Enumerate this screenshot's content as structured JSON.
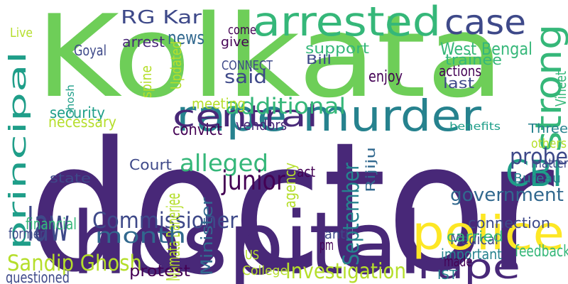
{
  "palette": {
    "purple": "#440154",
    "indigo": "#482878",
    "blue": "#3e4989",
    "slate": "#31688e",
    "teal": "#26828e",
    "sea": "#1f9e89",
    "green": "#35b779",
    "lime": "#6ece58",
    "yellowgreen": "#b5de2b",
    "yellow": "#fde725"
  },
  "words": [
    {
      "text": "doctor",
      "color": "#482878",
      "vertical": false
    },
    {
      "text": "Kolkata",
      "color": "#6ece58",
      "vertical": false
    },
    {
      "text": "hospital",
      "color": "#482878",
      "vertical": false
    },
    {
      "text": "police",
      "color": "#fde725",
      "vertical": false
    },
    {
      "text": "rape murder",
      "color": "#26828e",
      "vertical": false
    },
    {
      "text": "arrested",
      "color": "#35b779",
      "vertical": false
    },
    {
      "text": "central",
      "color": "#482878",
      "vertical": false
    },
    {
      "text": "principal",
      "color": "#1f9e89",
      "vertical": true
    },
    {
      "text": "case",
      "color": "#3e4989",
      "vertical": false
    },
    {
      "text": "strong",
      "color": "#35b779",
      "vertical": true
    },
    {
      "text": "CBI",
      "color": "#1f9e89",
      "vertical": false
    },
    {
      "text": "rape",
      "color": "#482878",
      "vertical": false
    },
    {
      "text": "law",
      "color": "#3e4989",
      "vertical": false
    },
    {
      "text": "Sandip Ghosh",
      "color": "#b5de2b",
      "vertical": false
    },
    {
      "text": "Commissioner",
      "color": "#3e4989",
      "vertical": false
    },
    {
      "text": "RG Kar",
      "color": "#3e4989",
      "vertical": false
    },
    {
      "text": "alleged",
      "color": "#35b779",
      "vertical": false
    },
    {
      "text": "additional",
      "color": "#35b779",
      "vertical": false
    },
    {
      "text": "probe",
      "color": "#3e4989",
      "vertical": false
    },
    {
      "text": "government",
      "color": "#31688e",
      "vertical": false
    },
    {
      "text": "Mamata Banerjee",
      "color": "#b5de2b",
      "vertical": true
    },
    {
      "text": "junior",
      "color": "#440154",
      "vertical": false
    },
    {
      "text": "month",
      "color": "#31688e",
      "vertical": false
    },
    {
      "text": "Investigation",
      "color": "#b5de2b",
      "vertical": false
    },
    {
      "text": "news",
      "color": "#31688e",
      "vertical": false
    },
    {
      "text": "said",
      "color": "#3e4989",
      "vertical": false
    },
    {
      "text": "West Bengal",
      "color": "#35b779",
      "vertical": false
    },
    {
      "text": "September",
      "color": "#26828e",
      "vertical": true
    },
    {
      "text": "security",
      "color": "#1f9e89",
      "vertical": false
    },
    {
      "text": "necessary",
      "color": "#b5de2b",
      "vertical": false
    },
    {
      "text": "financial",
      "color": "#35b779",
      "vertical": false
    },
    {
      "text": "questioned",
      "color": "#3e4989",
      "vertical": false
    },
    {
      "text": "protest",
      "color": "#440154",
      "vertical": false
    },
    {
      "text": "convict",
      "color": "#440154",
      "vertical": false
    },
    {
      "text": "support",
      "color": "#35b779",
      "vertical": false
    },
    {
      "text": "trainee",
      "color": "#35b779",
      "vertical": false
    },
    {
      "text": "actions",
      "color": "#440154",
      "vertical": false
    },
    {
      "text": "enjoy",
      "color": "#440154",
      "vertical": false
    },
    {
      "text": "last",
      "color": "#3e4989",
      "vertical": false
    },
    {
      "text": "vendors",
      "color": "#482878",
      "vertical": false
    },
    {
      "text": "meeting",
      "color": "#b5de2b",
      "vertical": false
    },
    {
      "text": "Court",
      "color": "#3e4989",
      "vertical": false
    },
    {
      "text": "state",
      "color": "#3e4989",
      "vertical": false
    },
    {
      "text": "former",
      "color": "#3e4989",
      "vertical": false
    },
    {
      "text": "feedback",
      "color": "#35b779",
      "vertical": false
    },
    {
      "text": "important",
      "color": "#26828e",
      "vertical": false
    },
    {
      "text": "Medical",
      "color": "#3e4989",
      "vertical": false
    },
    {
      "text": "carried",
      "color": "#35b779",
      "vertical": false
    },
    {
      "text": "connection",
      "color": "#3e4989",
      "vertical": false
    },
    {
      "text": "matter",
      "color": "#3e4989",
      "vertical": false
    },
    {
      "text": "others",
      "color": "#b5de2b",
      "vertical": false
    },
    {
      "text": "Bureau",
      "color": "#26828e",
      "vertical": false
    },
    {
      "text": "Three",
      "color": "#26828e",
      "vertical": false
    },
    {
      "text": "benefits",
      "color": "#1f9e89",
      "vertical": false
    },
    {
      "text": "Vineet",
      "color": "#35b779",
      "vertical": true
    },
    {
      "text": "Goyal",
      "color": "#3e4989",
      "vertical": false
    },
    {
      "text": "arrest",
      "color": "#482878",
      "vertical": false
    },
    {
      "text": "give",
      "color": "#440154",
      "vertical": false
    },
    {
      "text": "come",
      "color": "#440154",
      "vertical": false
    },
    {
      "text": "CONNECT",
      "color": "#3e4989",
      "vertical": false
    },
    {
      "text": "Bill",
      "color": "#3e4989",
      "vertical": false
    },
    {
      "text": "College",
      "color": "#b5de2b",
      "vertical": false
    },
    {
      "text": "Minister",
      "color": "#31688e",
      "vertical": true
    },
    {
      "text": "act",
      "color": "#440154",
      "vertical": false
    },
    {
      "text": "anti",
      "color": "#3e4989",
      "vertical": false
    },
    {
      "text": "agency",
      "color": "#b5de2b",
      "vertical": true
    },
    {
      "text": "Rijiju",
      "color": "#31688e",
      "vertical": true
    },
    {
      "text": "made",
      "color": "#440154",
      "vertical": false
    },
    {
      "text": "IST",
      "color": "#26828e",
      "vertical": false
    },
    {
      "text": "US",
      "color": "#b5de2b",
      "vertical": false
    },
    {
      "text": "pm",
      "color": "#440154",
      "vertical": false
    },
    {
      "text": "Live",
      "color": "#b5de2b",
      "vertical": false
    },
    {
      "text": "Updated",
      "color": "#b5de2b",
      "vertical": true
    },
    {
      "text": "spine",
      "color": "#b5de2b",
      "vertical": true
    },
    {
      "text": "Ghosh",
      "color": "#1f9e89",
      "vertical": true
    }
  ]
}
